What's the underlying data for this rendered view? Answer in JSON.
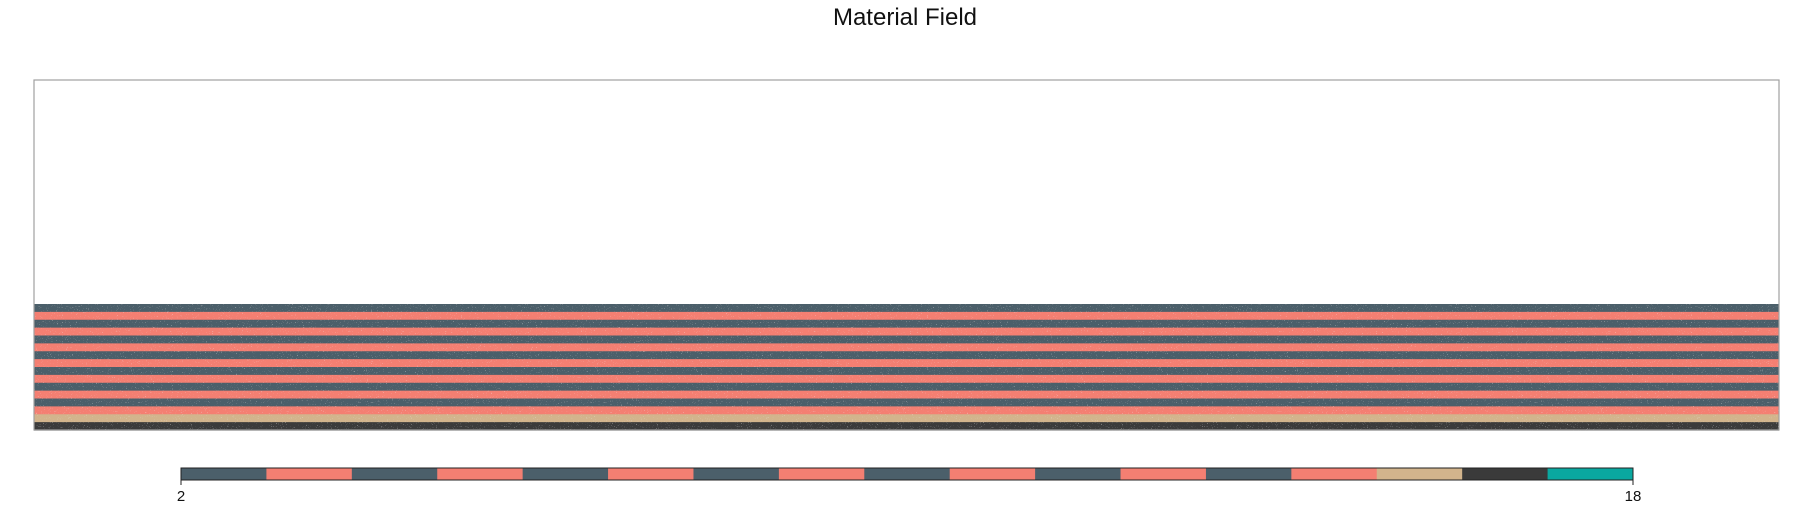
{
  "chart_data": {
    "type": "heatmap",
    "title": "Material Field",
    "xlabel": "",
    "ylabel": "",
    "colorbar": {
      "min": 2,
      "max": 18,
      "tick_labels": [
        "2",
        "18"
      ],
      "bins": [
        {
          "from": 2,
          "to": 3,
          "color": "#4b5f6a"
        },
        {
          "from": 3,
          "to": 4,
          "color": "#f47f72"
        },
        {
          "from": 4,
          "to": 5,
          "color": "#4b5f6a"
        },
        {
          "from": 5,
          "to": 6,
          "color": "#f47f72"
        },
        {
          "from": 6,
          "to": 7,
          "color": "#4b5f6a"
        },
        {
          "from": 7,
          "to": 8,
          "color": "#f47f72"
        },
        {
          "from": 8,
          "to": 9,
          "color": "#4b5f6a"
        },
        {
          "from": 9,
          "to": 10,
          "color": "#f47f72"
        },
        {
          "from": 10,
          "to": 11,
          "color": "#4b5f6a"
        },
        {
          "from": 11,
          "to": 12,
          "color": "#f47f72"
        },
        {
          "from": 12,
          "to": 13,
          "color": "#4b5f6a"
        },
        {
          "from": 13,
          "to": 14,
          "color": "#f47f72"
        },
        {
          "from": 14,
          "to": 15,
          "color": "#4b5f6a"
        },
        {
          "from": 15,
          "to": 16,
          "color": "#f47f72"
        },
        {
          "from": 16,
          "to": 17,
          "color": "#d2b48c"
        },
        {
          "from": 17,
          "to": 18,
          "color": "#3a3a3a"
        },
        {
          "from": 18,
          "to": 19,
          "color": "#0aa8a0"
        }
      ]
    },
    "layers_top_to_bottom": [
      {
        "material": 2,
        "color": "#4b5f6a"
      },
      {
        "material": 3,
        "color": "#f47f72"
      },
      {
        "material": 4,
        "color": "#4b5f6a"
      },
      {
        "material": 5,
        "color": "#f47f72"
      },
      {
        "material": 6,
        "color": "#4b5f6a"
      },
      {
        "material": 7,
        "color": "#f47f72"
      },
      {
        "material": 8,
        "color": "#4b5f6a"
      },
      {
        "material": 9,
        "color": "#f47f72"
      },
      {
        "material": 10,
        "color": "#4b5f6a"
      },
      {
        "material": 11,
        "color": "#f47f72"
      },
      {
        "material": 12,
        "color": "#4b5f6a"
      },
      {
        "material": 13,
        "color": "#f47f72"
      },
      {
        "material": 14,
        "color": "#4b5f6a"
      },
      {
        "material": 15,
        "color": "#f47f72"
      },
      {
        "material": 16,
        "color": "#d2b48c"
      },
      {
        "material": 17,
        "color": "#3a3a3a"
      }
    ],
    "filled_fraction_of_height": 0.36,
    "grid": false,
    "frame_color": "#a0a0a0"
  }
}
